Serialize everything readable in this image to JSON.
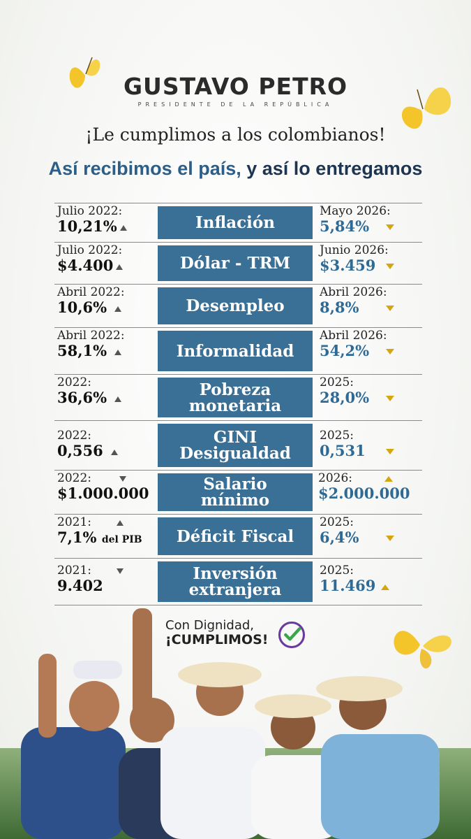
{
  "header": {
    "logo_name": "GUSTAVO PETRO",
    "logo_subtitle": "PRESIDENTE DE LA REPÚBLICA",
    "headline": "¡Le cumplimos a los colombianos!",
    "subheadline_a": "Así recibimos el país,",
    "subheadline_b": " y así lo entregamos"
  },
  "rows": [
    {
      "indicator": "Inflación",
      "left_label": "Julio 2022:",
      "left_value": "10,21%",
      "right_label": "Mayo 2026:",
      "right_value": "5,84%"
    },
    {
      "indicator": "Dólar - TRM",
      "left_label": "Julio 2022:",
      "left_value": "$4.400",
      "right_label": "Junio 2026:",
      "right_value": "$3.459"
    },
    {
      "indicator": "Desempleo",
      "left_label": "Abril 2022:",
      "left_value": "10,6%",
      "right_label": "Abril 2026:",
      "right_value": "8,8%"
    },
    {
      "indicator": "Informalidad",
      "left_label": "Abril 2022:",
      "left_value": "58,1%",
      "right_label": "Abril 2026:",
      "right_value": "54,2%"
    },
    {
      "indicator_a": "Pobreza",
      "indicator_b": "monetaria",
      "left_label": "2022:",
      "left_value": "36,6%",
      "right_label": "2025:",
      "right_value": "28,0%"
    },
    {
      "indicator_a": "GINI",
      "indicator_b": "Desigualdad",
      "left_label": "2022:",
      "left_value": "0,556",
      "right_label": "2025:",
      "right_value": "0,531"
    },
    {
      "indicator_a": "Salario",
      "indicator_b": "mínimo",
      "left_label": "2022:",
      "left_value": "$1.000.000",
      "right_label": "2026:",
      "right_value": "$2.000.000"
    },
    {
      "indicator": "Déficit Fiscal",
      "left_label": "2021:",
      "left_value": "7,1%",
      "left_suffix": "del PIB",
      "right_label": "2025:",
      "right_value": "6,4%"
    },
    {
      "indicator_a": "Inversión",
      "indicator_b": "extranjera",
      "left_label": "2021:",
      "left_value": "9.402",
      "right_label": "2025:",
      "right_value": "11.469"
    }
  ],
  "slogan": {
    "line1": "Con Dignidad,",
    "line2": "¡CUMPLIMOS!"
  },
  "colors": {
    "indicator_box": "#3a6f96",
    "right_value": "#2f6a95",
    "accent_yellow": "#d6a60f",
    "headline_blue": "#2c5e88"
  }
}
